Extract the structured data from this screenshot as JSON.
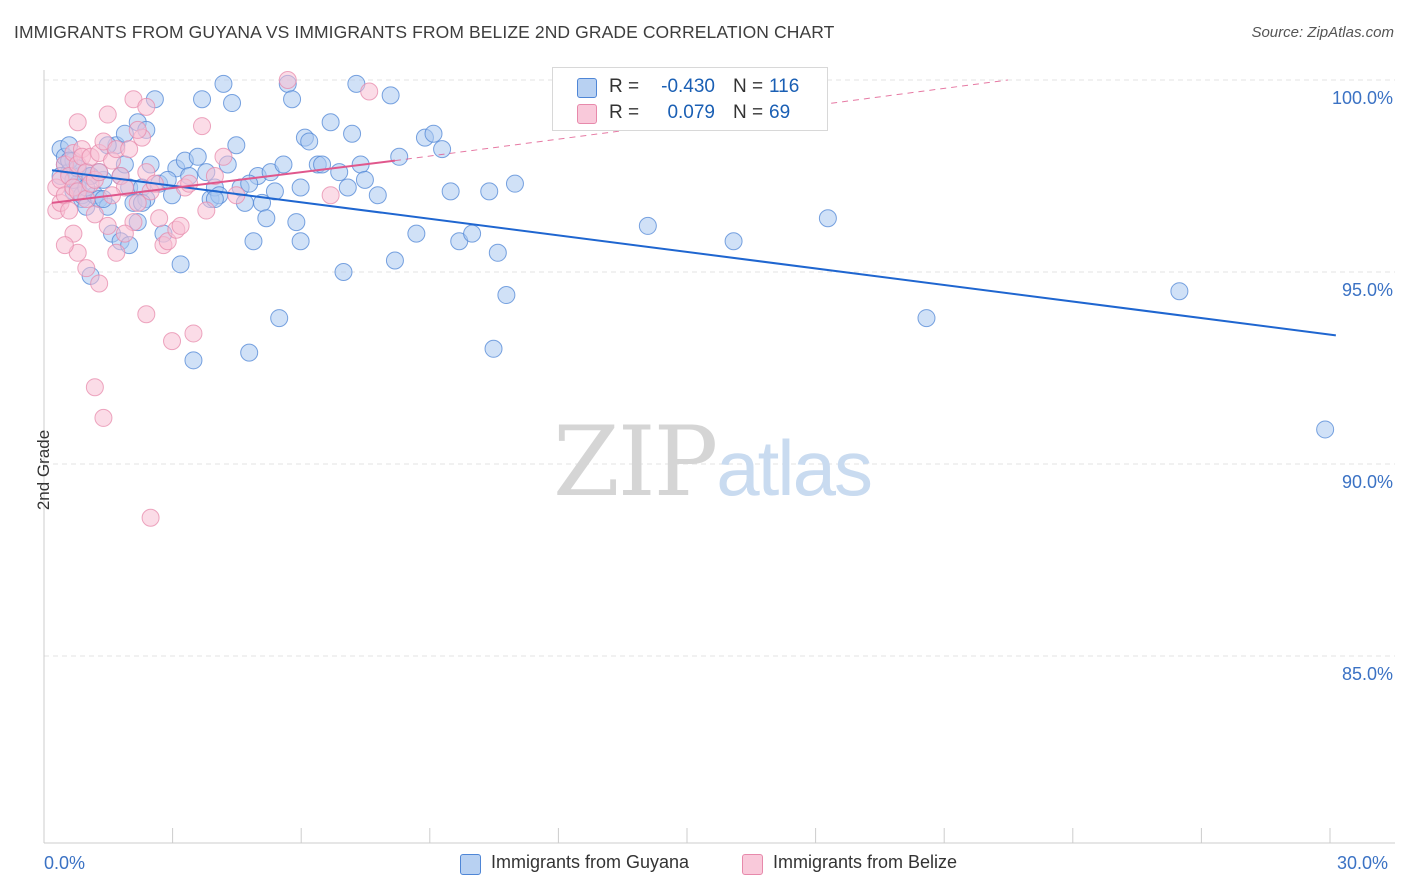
{
  "title": "IMMIGRANTS FROM GUYANA VS IMMIGRANTS FROM BELIZE 2ND GRADE CORRELATION CHART",
  "source": "Source: ZipAtlas.com",
  "watermark": {
    "zip": "ZIP",
    "atlas": "atlas"
  },
  "legend": {
    "rows": [
      {
        "r_label": "R =",
        "r_value": "-0.430",
        "n_label": "N =",
        "n_value": "116"
      },
      {
        "r_label": "R =",
        "r_value": "0.079",
        "n_label": "N =",
        "n_value": "69"
      }
    ]
  },
  "colors": {
    "guyana_fill": "#a9c8f0",
    "guyana_stroke": "#4f86d6",
    "guyana_line": "#1f66d0",
    "belize_fill": "#f7bfd3",
    "belize_stroke": "#e789ab",
    "belize_line": "#e0578c",
    "grid": "#e3e3e3",
    "axis": "#cccccc",
    "tick_text": "#3b72c4"
  },
  "chart_data": {
    "type": "scatter",
    "title": "IMMIGRANTS FROM GUYANA VS IMMIGRANTS FROM BELIZE 2ND GRADE CORRELATION CHART",
    "xlabel": "",
    "ylabel": "2nd Grade",
    "xlim": [
      0,
      30
    ],
    "ylim": [
      80.5,
      100.6
    ],
    "x_tick_labels": [
      "0.0%",
      "30.0%"
    ],
    "y_ticks": [
      100,
      95,
      90,
      85
    ],
    "y_tick_labels": [
      "100.0%",
      "95.0%",
      "90.0%",
      "85.0%"
    ],
    "grid": true,
    "legend_position": "bottom",
    "series": [
      {
        "name": "Immigrants from Guyana",
        "R": -0.43,
        "N": 116,
        "trend": {
          "x": [
            0,
            29.95
          ],
          "y": [
            97.65,
            93.35
          ]
        },
        "points": [
          [
            0.2,
            98.2
          ],
          [
            0.3,
            97.8
          ],
          [
            0.4,
            97.6
          ],
          [
            0.5,
            97.1
          ],
          [
            0.6,
            97.3
          ],
          [
            0.7,
            96.9
          ],
          [
            0.8,
            97.6
          ],
          [
            0.2,
            97.5
          ],
          [
            0.3,
            98.0
          ],
          [
            0.4,
            98.3
          ],
          [
            0.5,
            97.9
          ],
          [
            0.6,
            97.2
          ],
          [
            0.7,
            97.0
          ],
          [
            0.8,
            96.7
          ],
          [
            0.9,
            97.5
          ],
          [
            1.0,
            97.0
          ],
          [
            1.1,
            96.9
          ],
          [
            1.2,
            97.4
          ],
          [
            1.3,
            96.7
          ],
          [
            1.5,
            98.3
          ],
          [
            1.6,
            97.5
          ],
          [
            1.7,
            97.8
          ],
          [
            1.8,
            97.2
          ],
          [
            1.9,
            96.8
          ],
          [
            2.0,
            96.3
          ],
          [
            2.1,
            97.2
          ],
          [
            2.2,
            96.9
          ],
          [
            0.9,
            94.9
          ],
          [
            1.4,
            96.0
          ],
          [
            1.6,
            95.8
          ],
          [
            1.8,
            95.7
          ],
          [
            2.0,
            98.9
          ],
          [
            2.2,
            98.7
          ],
          [
            2.4,
            99.5
          ],
          [
            2.5,
            97.3
          ],
          [
            2.6,
            96.0
          ],
          [
            2.8,
            97.0
          ],
          [
            2.9,
            97.7
          ],
          [
            3.0,
            95.2
          ],
          [
            3.1,
            97.9
          ],
          [
            3.2,
            97.5
          ],
          [
            3.3,
            92.7
          ],
          [
            3.5,
            99.5
          ],
          [
            3.6,
            97.6
          ],
          [
            3.7,
            96.9
          ],
          [
            3.8,
            97.2
          ],
          [
            3.9,
            97.0
          ],
          [
            4.0,
            99.9
          ],
          [
            4.1,
            97.8
          ],
          [
            4.2,
            99.4
          ],
          [
            4.3,
            98.3
          ],
          [
            4.4,
            97.2
          ],
          [
            4.5,
            96.8
          ],
          [
            4.6,
            92.9
          ],
          [
            4.7,
            95.8
          ],
          [
            4.8,
            97.5
          ],
          [
            4.9,
            96.8
          ],
          [
            5.0,
            96.4
          ],
          [
            5.1,
            97.6
          ],
          [
            5.2,
            97.1
          ],
          [
            5.3,
            93.8
          ],
          [
            5.4,
            97.8
          ],
          [
            5.5,
            99.9
          ],
          [
            5.6,
            99.5
          ],
          [
            5.7,
            96.3
          ],
          [
            5.8,
            95.8
          ],
          [
            5.9,
            98.5
          ],
          [
            6.0,
            98.4
          ],
          [
            6.2,
            97.8
          ],
          [
            6.3,
            97.8
          ],
          [
            6.5,
            98.9
          ],
          [
            6.7,
            97.6
          ],
          [
            6.8,
            95.0
          ],
          [
            7.0,
            98.6
          ],
          [
            7.1,
            99.9
          ],
          [
            7.2,
            97.8
          ],
          [
            7.3,
            97.4
          ],
          [
            7.6,
            97.0
          ],
          [
            7.9,
            99.6
          ],
          [
            8.0,
            95.3
          ],
          [
            8.1,
            98.0
          ],
          [
            8.5,
            96.0
          ],
          [
            8.7,
            98.5
          ],
          [
            8.9,
            98.6
          ],
          [
            9.1,
            98.2
          ],
          [
            9.3,
            97.1
          ],
          [
            9.5,
            95.8
          ],
          [
            9.8,
            96.0
          ],
          [
            10.2,
            97.1
          ],
          [
            10.3,
            93.0
          ],
          [
            10.4,
            95.5
          ],
          [
            10.6,
            94.4
          ],
          [
            10.8,
            97.3
          ],
          [
            13.9,
            96.2
          ],
          [
            15.9,
            95.8
          ],
          [
            18.1,
            96.4
          ],
          [
            20.4,
            93.8
          ],
          [
            26.3,
            94.5
          ],
          [
            29.7,
            90.9
          ],
          [
            1.2,
            96.9
          ],
          [
            0.5,
            97.4
          ],
          [
            0.9,
            97.5
          ],
          [
            1.1,
            97.6
          ],
          [
            1.7,
            98.6
          ],
          [
            2.3,
            97.8
          ],
          [
            2.7,
            97.4
          ],
          [
            3.4,
            98.0
          ],
          [
            3.8,
            96.9
          ],
          [
            4.6,
            97.3
          ],
          [
            5.8,
            97.2
          ],
          [
            6.9,
            97.2
          ],
          [
            0.4,
            97.9
          ],
          [
            0.6,
            97.7
          ],
          [
            0.8,
            97.2
          ],
          [
            1.3,
            98.3
          ],
          [
            2.1,
            96.8
          ]
        ]
      },
      {
        "name": "Immigrants from Belize",
        "R": 0.079,
        "N": 69,
        "trend": {
          "x": [
            0,
            8.0
          ],
          "y": [
            96.8,
            97.9
          ]
        },
        "trend_extended": {
          "x": [
            8.0,
            22.3
          ],
          "y": [
            97.9,
            100.0
          ]
        },
        "points": [
          [
            0.1,
            97.2
          ],
          [
            0.1,
            96.6
          ],
          [
            0.2,
            96.8
          ],
          [
            0.2,
            97.4
          ],
          [
            0.3,
            97.8
          ],
          [
            0.3,
            97.0
          ],
          [
            0.4,
            97.5
          ],
          [
            0.4,
            96.6
          ],
          [
            0.5,
            98.1
          ],
          [
            0.5,
            97.2
          ],
          [
            0.6,
            97.8
          ],
          [
            0.6,
            97.1
          ],
          [
            0.7,
            98.2
          ],
          [
            0.7,
            98.0
          ],
          [
            0.8,
            97.6
          ],
          [
            0.8,
            96.9
          ],
          [
            0.9,
            98.0
          ],
          [
            0.9,
            97.3
          ],
          [
            1.0,
            97.4
          ],
          [
            1.0,
            96.5
          ],
          [
            1.1,
            97.6
          ],
          [
            1.1,
            98.1
          ],
          [
            1.2,
            98.4
          ],
          [
            1.3,
            96.2
          ],
          [
            1.4,
            97.9
          ],
          [
            1.5,
            98.2
          ],
          [
            1.6,
            97.5
          ],
          [
            1.7,
            97.2
          ],
          [
            1.8,
            98.2
          ],
          [
            1.9,
            96.3
          ],
          [
            2.0,
            96.8
          ],
          [
            2.1,
            98.5
          ],
          [
            2.2,
            97.6
          ],
          [
            2.3,
            97.1
          ],
          [
            2.4,
            97.3
          ],
          [
            2.5,
            96.4
          ],
          [
            2.6,
            95.7
          ],
          [
            2.7,
            95.8
          ],
          [
            2.8,
            93.2
          ],
          [
            2.9,
            96.1
          ],
          [
            3.0,
            96.2
          ],
          [
            3.1,
            97.2
          ],
          [
            3.2,
            97.3
          ],
          [
            3.3,
            93.4
          ],
          [
            3.5,
            98.8
          ],
          [
            3.6,
            96.6
          ],
          [
            3.8,
            97.5
          ],
          [
            4.0,
            98.0
          ],
          [
            4.3,
            97.0
          ],
          [
            5.5,
            100.0
          ],
          [
            6.5,
            97.0
          ],
          [
            7.4,
            99.7
          ],
          [
            1.0,
            92.0
          ],
          [
            1.2,
            91.2
          ],
          [
            2.2,
            93.9
          ],
          [
            2.3,
            88.6
          ],
          [
            0.5,
            96.0
          ],
          [
            0.6,
            95.5
          ],
          [
            0.8,
            95.1
          ],
          [
            1.1,
            94.7
          ],
          [
            0.3,
            95.7
          ],
          [
            1.5,
            95.5
          ],
          [
            1.7,
            96.0
          ],
          [
            1.9,
            99.5
          ],
          [
            2.2,
            99.3
          ],
          [
            1.3,
            99.1
          ],
          [
            0.6,
            98.9
          ],
          [
            2.0,
            98.7
          ],
          [
            1.4,
            97.0
          ]
        ]
      }
    ]
  }
}
